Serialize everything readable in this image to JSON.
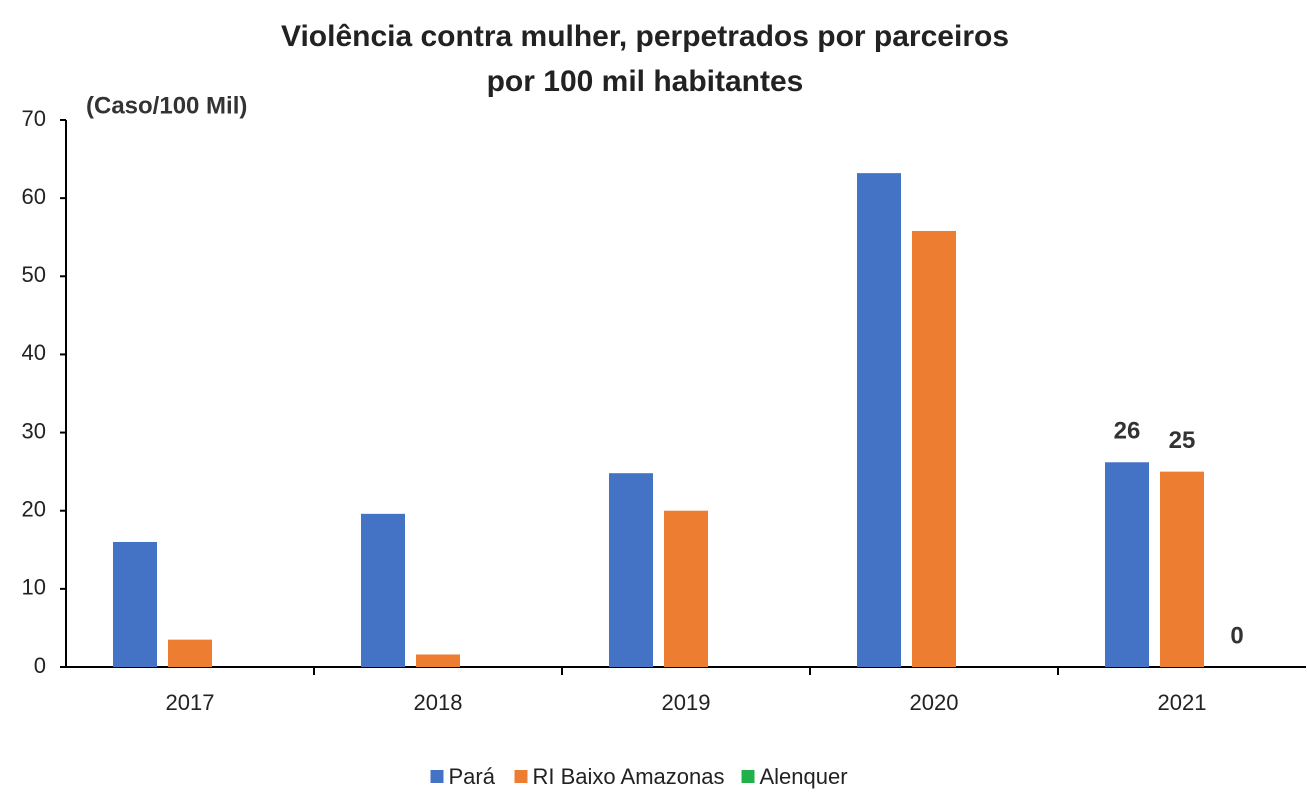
{
  "chart_data": {
    "type": "bar",
    "title": [
      "Violência contra mulher, perpetrados por parceiros",
      "por 100 mil habitantes"
    ],
    "y_label": "(Caso/100 Mil)",
    "categories": [
      "2017",
      "2018",
      "2019",
      "2020",
      "2021"
    ],
    "series": [
      {
        "name": "Pará",
        "color": "#4472c4",
        "values": [
          16,
          19.6,
          24.8,
          63.2,
          26.2
        ],
        "value_labels": [
          null,
          null,
          null,
          null,
          "26"
        ]
      },
      {
        "name": "RI Baixo Amazonas",
        "color": "#ed7d31",
        "values": [
          3.5,
          1.6,
          20,
          55.8,
          25
        ],
        "value_labels": [
          null,
          null,
          null,
          null,
          "25"
        ]
      },
      {
        "name": "Alenquer",
        "color": "#21b14b",
        "values": [
          0,
          0,
          0,
          0,
          0
        ],
        "value_labels": [
          null,
          null,
          null,
          null,
          "0"
        ]
      }
    ],
    "ylim": [
      0,
      70
    ],
    "yticks": [
      0,
      10,
      20,
      30,
      40,
      50,
      60,
      70
    ],
    "grid": false,
    "legend": "bottom"
  }
}
